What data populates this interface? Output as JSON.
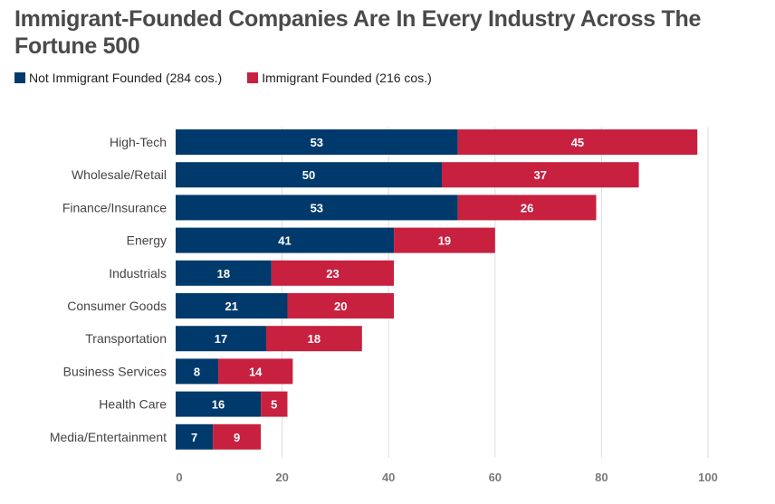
{
  "chart_data": {
    "type": "bar",
    "orientation": "horizontal",
    "stacked": true,
    "title": "Immigrant-Founded Companies Are In Every Industry Across The Fortune 500",
    "xlabel": "",
    "ylabel": "",
    "xlim": [
      0,
      100
    ],
    "xticks": [
      0,
      20,
      40,
      60,
      80,
      100
    ],
    "grid": true,
    "legend_position": "top-left",
    "categories": [
      "High-Tech",
      "Wholesale/Retail",
      "Finance/Insurance",
      "Energy",
      "Industrials",
      "Consumer Goods",
      "Transportation",
      "Business Services",
      "Health Care",
      "Media/Entertainment"
    ],
    "series": [
      {
        "name": "Not Immigrant Founded (284 cos.)",
        "color": "#003a6c",
        "values": [
          53,
          50,
          53,
          41,
          18,
          21,
          17,
          8,
          16,
          7
        ]
      },
      {
        "name": "Immigrant Founded (216 cos.)",
        "color": "#c8203f",
        "values": [
          45,
          37,
          26,
          19,
          23,
          20,
          18,
          14,
          5,
          9
        ]
      }
    ]
  },
  "colors": {
    "not_immigrant": "#003a6c",
    "immigrant": "#c8203f",
    "grid": "#dddddd"
  }
}
